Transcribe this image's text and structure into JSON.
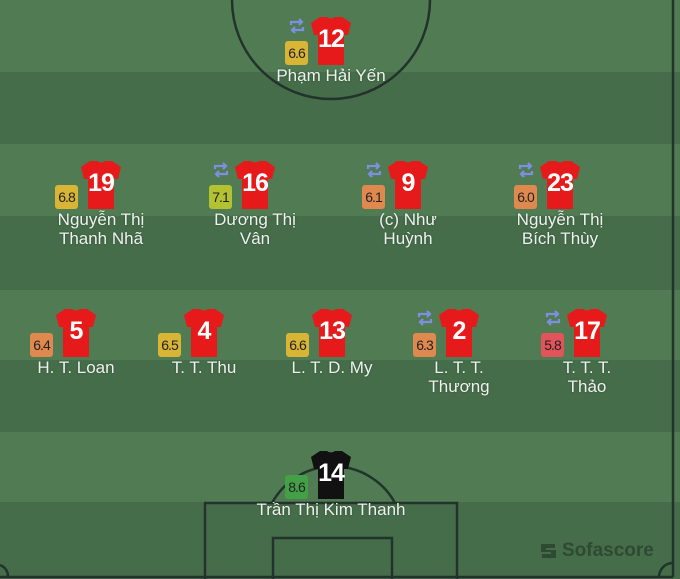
{
  "colors": {
    "kit_home": "#e61a1a",
    "kit_gk": "#111111",
    "substitution": "#7d8fe0"
  },
  "brand": {
    "logo_text": "Sofascore",
    "icon": "sofascore-logo-icon"
  },
  "players": [
    {
      "number": "12",
      "name": "Phạm Hải Yến",
      "rating": "6.6",
      "rating_color": "#d8b534",
      "substituted": true
    },
    {
      "number": "19",
      "name": "Nguyễn Thị\nThanh Nhã",
      "rating": "6.8",
      "rating_color": "#d8b534",
      "substituted": false
    },
    {
      "number": "16",
      "name": "Dương Thị\nVân",
      "rating": "7.1",
      "rating_color": "#b3c230",
      "substituted": true
    },
    {
      "number": "9",
      "name": "(c) Như\nHuỳnh",
      "rating": "6.1",
      "rating_color": "#e0894f",
      "substituted": true
    },
    {
      "number": "23",
      "name": "Nguyễn Thị\nBích Thùy",
      "rating": "6.0",
      "rating_color": "#e0894f",
      "substituted": true
    },
    {
      "number": "5",
      "name": "H. T. Loan",
      "rating": "6.4",
      "rating_color": "#e0894f",
      "substituted": false
    },
    {
      "number": "4",
      "name": "T. T. Thu",
      "rating": "6.5",
      "rating_color": "#d8b534",
      "substituted": false
    },
    {
      "number": "13",
      "name": "L. T. D. My",
      "rating": "6.6",
      "rating_color": "#d8b534",
      "substituted": false
    },
    {
      "number": "2",
      "name": "L. T. T.\nThương",
      "rating": "6.3",
      "rating_color": "#e0894f",
      "substituted": true
    },
    {
      "number": "17",
      "name": "T. T. T.\nThảo",
      "rating": "5.8",
      "rating_color": "#e3545a",
      "substituted": true
    },
    {
      "number": "14",
      "name": "Trần Thị Kim Thanh",
      "rating": "8.6",
      "rating_color": "#43a047",
      "substituted": false,
      "goalkeeper": true
    }
  ]
}
